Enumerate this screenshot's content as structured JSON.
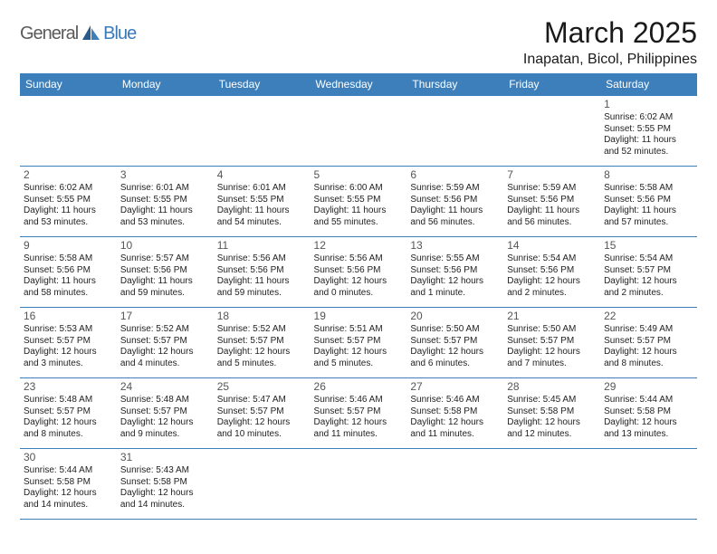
{
  "logo": {
    "part1": "General",
    "part2": "Blue"
  },
  "title": "March 2025",
  "location": "Inapatan, Bicol, Philippines",
  "colors": {
    "header_bg": "#3d7fba",
    "text": "#222222",
    "logo_blue": "#3a7ab8",
    "border": "#3d7fba"
  },
  "columns": [
    "Sunday",
    "Monday",
    "Tuesday",
    "Wednesday",
    "Thursday",
    "Friday",
    "Saturday"
  ],
  "weeks": [
    [
      null,
      null,
      null,
      null,
      null,
      null,
      {
        "n": "1",
        "sr": "Sunrise: 6:02 AM",
        "ss": "Sunset: 5:55 PM",
        "dl": "Daylight: 11 hours and 52 minutes."
      }
    ],
    [
      {
        "n": "2",
        "sr": "Sunrise: 6:02 AM",
        "ss": "Sunset: 5:55 PM",
        "dl": "Daylight: 11 hours and 53 minutes."
      },
      {
        "n": "3",
        "sr": "Sunrise: 6:01 AM",
        "ss": "Sunset: 5:55 PM",
        "dl": "Daylight: 11 hours and 53 minutes."
      },
      {
        "n": "4",
        "sr": "Sunrise: 6:01 AM",
        "ss": "Sunset: 5:55 PM",
        "dl": "Daylight: 11 hours and 54 minutes."
      },
      {
        "n": "5",
        "sr": "Sunrise: 6:00 AM",
        "ss": "Sunset: 5:55 PM",
        "dl": "Daylight: 11 hours and 55 minutes."
      },
      {
        "n": "6",
        "sr": "Sunrise: 5:59 AM",
        "ss": "Sunset: 5:56 PM",
        "dl": "Daylight: 11 hours and 56 minutes."
      },
      {
        "n": "7",
        "sr": "Sunrise: 5:59 AM",
        "ss": "Sunset: 5:56 PM",
        "dl": "Daylight: 11 hours and 56 minutes."
      },
      {
        "n": "8",
        "sr": "Sunrise: 5:58 AM",
        "ss": "Sunset: 5:56 PM",
        "dl": "Daylight: 11 hours and 57 minutes."
      }
    ],
    [
      {
        "n": "9",
        "sr": "Sunrise: 5:58 AM",
        "ss": "Sunset: 5:56 PM",
        "dl": "Daylight: 11 hours and 58 minutes."
      },
      {
        "n": "10",
        "sr": "Sunrise: 5:57 AM",
        "ss": "Sunset: 5:56 PM",
        "dl": "Daylight: 11 hours and 59 minutes."
      },
      {
        "n": "11",
        "sr": "Sunrise: 5:56 AM",
        "ss": "Sunset: 5:56 PM",
        "dl": "Daylight: 11 hours and 59 minutes."
      },
      {
        "n": "12",
        "sr": "Sunrise: 5:56 AM",
        "ss": "Sunset: 5:56 PM",
        "dl": "Daylight: 12 hours and 0 minutes."
      },
      {
        "n": "13",
        "sr": "Sunrise: 5:55 AM",
        "ss": "Sunset: 5:56 PM",
        "dl": "Daylight: 12 hours and 1 minute."
      },
      {
        "n": "14",
        "sr": "Sunrise: 5:54 AM",
        "ss": "Sunset: 5:56 PM",
        "dl": "Daylight: 12 hours and 2 minutes."
      },
      {
        "n": "15",
        "sr": "Sunrise: 5:54 AM",
        "ss": "Sunset: 5:57 PM",
        "dl": "Daylight: 12 hours and 2 minutes."
      }
    ],
    [
      {
        "n": "16",
        "sr": "Sunrise: 5:53 AM",
        "ss": "Sunset: 5:57 PM",
        "dl": "Daylight: 12 hours and 3 minutes."
      },
      {
        "n": "17",
        "sr": "Sunrise: 5:52 AM",
        "ss": "Sunset: 5:57 PM",
        "dl": "Daylight: 12 hours and 4 minutes."
      },
      {
        "n": "18",
        "sr": "Sunrise: 5:52 AM",
        "ss": "Sunset: 5:57 PM",
        "dl": "Daylight: 12 hours and 5 minutes."
      },
      {
        "n": "19",
        "sr": "Sunrise: 5:51 AM",
        "ss": "Sunset: 5:57 PM",
        "dl": "Daylight: 12 hours and 5 minutes."
      },
      {
        "n": "20",
        "sr": "Sunrise: 5:50 AM",
        "ss": "Sunset: 5:57 PM",
        "dl": "Daylight: 12 hours and 6 minutes."
      },
      {
        "n": "21",
        "sr": "Sunrise: 5:50 AM",
        "ss": "Sunset: 5:57 PM",
        "dl": "Daylight: 12 hours and 7 minutes."
      },
      {
        "n": "22",
        "sr": "Sunrise: 5:49 AM",
        "ss": "Sunset: 5:57 PM",
        "dl": "Daylight: 12 hours and 8 minutes."
      }
    ],
    [
      {
        "n": "23",
        "sr": "Sunrise: 5:48 AM",
        "ss": "Sunset: 5:57 PM",
        "dl": "Daylight: 12 hours and 8 minutes."
      },
      {
        "n": "24",
        "sr": "Sunrise: 5:48 AM",
        "ss": "Sunset: 5:57 PM",
        "dl": "Daylight: 12 hours and 9 minutes."
      },
      {
        "n": "25",
        "sr": "Sunrise: 5:47 AM",
        "ss": "Sunset: 5:57 PM",
        "dl": "Daylight: 12 hours and 10 minutes."
      },
      {
        "n": "26",
        "sr": "Sunrise: 5:46 AM",
        "ss": "Sunset: 5:57 PM",
        "dl": "Daylight: 12 hours and 11 minutes."
      },
      {
        "n": "27",
        "sr": "Sunrise: 5:46 AM",
        "ss": "Sunset: 5:58 PM",
        "dl": "Daylight: 12 hours and 11 minutes."
      },
      {
        "n": "28",
        "sr": "Sunrise: 5:45 AM",
        "ss": "Sunset: 5:58 PM",
        "dl": "Daylight: 12 hours and 12 minutes."
      },
      {
        "n": "29",
        "sr": "Sunrise: 5:44 AM",
        "ss": "Sunset: 5:58 PM",
        "dl": "Daylight: 12 hours and 13 minutes."
      }
    ],
    [
      {
        "n": "30",
        "sr": "Sunrise: 5:44 AM",
        "ss": "Sunset: 5:58 PM",
        "dl": "Daylight: 12 hours and 14 minutes."
      },
      {
        "n": "31",
        "sr": "Sunrise: 5:43 AM",
        "ss": "Sunset: 5:58 PM",
        "dl": "Daylight: 12 hours and 14 minutes."
      },
      null,
      null,
      null,
      null,
      null
    ]
  ]
}
